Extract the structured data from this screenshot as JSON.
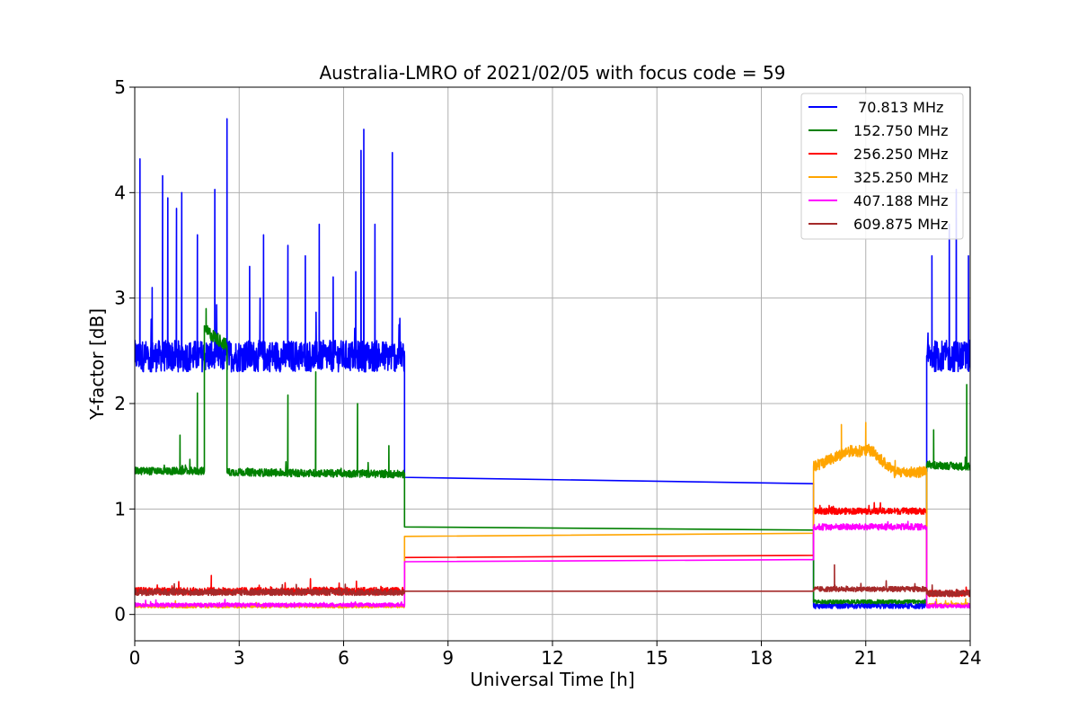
{
  "chart_data": {
    "type": "line",
    "title": "Australia-LMRO of 2021/02/05 with focus code = 59",
    "xlabel": "Universal Time [h]",
    "ylabel": "Y-factor [dB]",
    "xlim": [
      0,
      24
    ],
    "ylim": [
      -0.25,
      5.0
    ],
    "xticks": [
      0,
      3,
      6,
      9,
      12,
      15,
      18,
      21,
      24
    ],
    "yticks": [
      0,
      1,
      2,
      3,
      4,
      5
    ],
    "grid": true,
    "legend_position": "top-right",
    "series": [
      {
        "name": " 70.813 MHz",
        "color": "#0000ff",
        "base": [
          [
            0,
            2.45
          ],
          [
            7.75,
            2.45
          ],
          [
            7.75,
            1.3
          ],
          [
            19.5,
            1.24
          ],
          [
            19.5,
            0.08
          ],
          [
            22.75,
            0.08
          ],
          [
            22.75,
            2.45
          ],
          [
            24,
            2.45
          ]
        ],
        "noise": [
          [
            0,
            7.75,
            0.25
          ],
          [
            19.5,
            22.75,
            0.04
          ],
          [
            22.75,
            24,
            0.25
          ]
        ],
        "spikes": [
          [
            0.15,
            4.32
          ],
          [
            0.5,
            3.1
          ],
          [
            0.8,
            4.16
          ],
          [
            0.95,
            3.95
          ],
          [
            1.2,
            3.85
          ],
          [
            1.35,
            4.0
          ],
          [
            1.8,
            3.6
          ],
          [
            2.3,
            4.03
          ],
          [
            2.65,
            4.7
          ],
          [
            3.3,
            3.3
          ],
          [
            3.6,
            3.0
          ],
          [
            3.7,
            3.6
          ],
          [
            4.4,
            3.5
          ],
          [
            4.9,
            3.4
          ],
          [
            5.3,
            3.7
          ],
          [
            5.7,
            3.2
          ],
          [
            6.35,
            3.25
          ],
          [
            6.5,
            4.4
          ],
          [
            6.58,
            4.6
          ],
          [
            6.9,
            3.7
          ],
          [
            7.4,
            4.38
          ],
          [
            22.9,
            3.4
          ],
          [
            23.4,
            3.7
          ],
          [
            23.6,
            4.03
          ],
          [
            23.95,
            3.4
          ]
        ]
      },
      {
        "name": "152.750 MHz",
        "color": "#008000",
        "base": [
          [
            0,
            1.36
          ],
          [
            2.0,
            1.36
          ],
          [
            2.0,
            2.7
          ],
          [
            2.65,
            2.55
          ],
          [
            2.65,
            1.35
          ],
          [
            7.75,
            1.33
          ],
          [
            7.75,
            0.83
          ],
          [
            19.5,
            0.8
          ],
          [
            19.5,
            0.12
          ],
          [
            22.75,
            0.12
          ],
          [
            22.75,
            1.42
          ],
          [
            24,
            1.4
          ]
        ],
        "noise": [
          [
            0,
            2.0,
            0.06
          ],
          [
            2.0,
            2.65,
            0.1
          ],
          [
            2.65,
            7.75,
            0.06
          ],
          [
            19.5,
            22.75,
            0.03
          ],
          [
            22.75,
            24,
            0.06
          ]
        ],
        "spikes": [
          [
            1.3,
            1.7
          ],
          [
            1.8,
            2.1
          ],
          [
            2.05,
            2.9
          ],
          [
            4.4,
            2.08
          ],
          [
            5.2,
            2.3
          ],
          [
            6.4,
            2.0
          ],
          [
            7.3,
            1.6
          ],
          [
            23.9,
            2.18
          ],
          [
            22.95,
            1.75
          ]
        ]
      },
      {
        "name": "256.250 MHz",
        "color": "#ff0000",
        "base": [
          [
            0,
            0.22
          ],
          [
            7.75,
            0.22
          ],
          [
            7.75,
            0.54
          ],
          [
            19.5,
            0.56
          ],
          [
            19.5,
            0.98
          ],
          [
            22.75,
            0.98
          ],
          [
            22.75,
            0.2
          ],
          [
            24,
            0.2
          ]
        ],
        "noise": [
          [
            0,
            7.75,
            0.06
          ],
          [
            19.5,
            22.75,
            0.05
          ],
          [
            22.75,
            24,
            0.05
          ]
        ],
        "spikes": [
          [
            2.2,
            0.37
          ]
        ]
      },
      {
        "name": "325.250 MHz",
        "color": "#ffa500",
        "base": [
          [
            0,
            0.08
          ],
          [
            7.75,
            0.08
          ],
          [
            7.75,
            0.74
          ],
          [
            19.5,
            0.77
          ],
          [
            19.5,
            1.4
          ],
          [
            20.5,
            1.55
          ],
          [
            21.2,
            1.55
          ],
          [
            21.8,
            1.35
          ],
          [
            22.75,
            1.35
          ],
          [
            22.75,
            0.09
          ],
          [
            24,
            0.09
          ]
        ],
        "noise": [
          [
            0,
            7.75,
            0.03
          ],
          [
            19.5,
            22.75,
            0.09
          ],
          [
            22.75,
            24,
            0.03
          ]
        ],
        "spikes": [
          [
            20.3,
            1.8
          ],
          [
            21.0,
            1.82
          ]
        ]
      },
      {
        "name": "407.188 MHz",
        "color": "#ff00ff",
        "base": [
          [
            0,
            0.09
          ],
          [
            7.75,
            0.09
          ],
          [
            7.75,
            0.5
          ],
          [
            19.5,
            0.52
          ],
          [
            19.5,
            0.83
          ],
          [
            22.75,
            0.83
          ],
          [
            22.75,
            0.08
          ],
          [
            24,
            0.08
          ]
        ],
        "noise": [
          [
            0,
            7.75,
            0.03
          ],
          [
            19.5,
            22.75,
            0.05
          ],
          [
            22.75,
            24,
            0.03
          ]
        ],
        "spikes": []
      },
      {
        "name": "609.875 MHz",
        "color": "#a52a2a",
        "base": [
          [
            0,
            0.21
          ],
          [
            7.75,
            0.21
          ],
          [
            7.75,
            0.22
          ],
          [
            19.5,
            0.22
          ],
          [
            19.5,
            0.24
          ],
          [
            22.75,
            0.24
          ],
          [
            22.75,
            0.2
          ],
          [
            24,
            0.2
          ]
        ],
        "noise": [
          [
            0,
            7.75,
            0.05
          ],
          [
            19.5,
            22.75,
            0.04
          ],
          [
            22.75,
            24,
            0.05
          ]
        ],
        "spikes": [
          [
            20.1,
            0.47
          ]
        ]
      }
    ]
  }
}
